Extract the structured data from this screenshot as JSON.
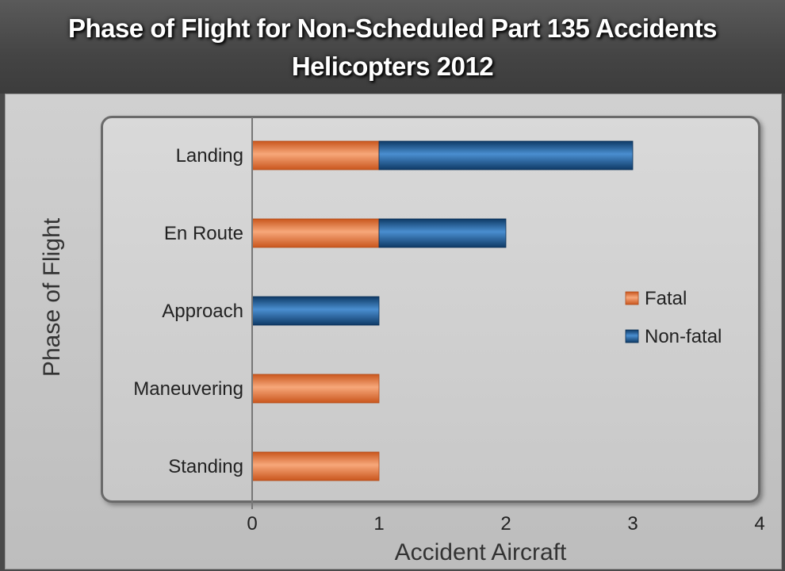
{
  "title_line1": "Phase of Flight for Non-Scheduled Part 135 Accidents",
  "title_line2": "Helicopters 2012",
  "colors": {
    "fatal": "#e0733a",
    "non_fatal": "#1a5a96"
  },
  "chart_data": {
    "type": "bar",
    "orientation": "horizontal",
    "stacked": true,
    "categories": [
      "Landing",
      "En Route",
      "Approach",
      "Maneuvering",
      "Standing"
    ],
    "series": [
      {
        "name": "Fatal",
        "values": [
          1,
          1,
          0,
          1,
          1
        ]
      },
      {
        "name": "Non-fatal",
        "values": [
          2,
          1,
          1,
          0,
          0
        ]
      }
    ],
    "xlabel": "Accident Aircraft",
    "ylabel": "Phase of Flight",
    "xlim": [
      0,
      4
    ],
    "xticks": [
      "0",
      "1",
      "2",
      "3",
      "4"
    ],
    "grid": false,
    "legend": "right"
  }
}
